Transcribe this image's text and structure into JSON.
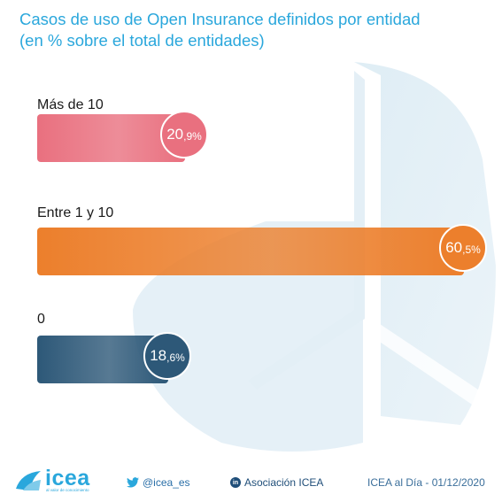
{
  "title_lines": [
    "Casos de uso de Open Insurance definidos por entidad",
    "(en % sobre el total de entidades)"
  ],
  "colors": {
    "accent": "#2aa7dc",
    "bar_mas10": "#e9707f",
    "bar_entre": "#ec7f2c",
    "bar_cero": "#2d5878"
  },
  "chart_data": {
    "type": "bar",
    "orientation": "horizontal",
    "title": "Casos de uso de Open Insurance definidos por entidad",
    "subtitle": "(en % sobre el total de entidades)",
    "categories": [
      "Más de 10",
      "Entre 1 y 10",
      "0"
    ],
    "values": [
      20.9,
      60.5,
      18.6
    ],
    "value_labels": [
      {
        "int": "20",
        "dec": ",9%"
      },
      {
        "int": "60",
        "dec": ",5%"
      },
      {
        "int": "18",
        "dec": ",6%"
      }
    ],
    "unit": "%",
    "xlim": [
      0,
      60.5
    ],
    "grid": false,
    "legend": "none"
  },
  "footer": {
    "logo_text": "icea",
    "logo_tagline": "al valor de conocimiento",
    "twitter_icon": "twitter-bird-icon",
    "twitter_handle": "@icea_es",
    "linkedin_icon": "linkedin-icon",
    "linkedin_glyph": "in",
    "linkedin_name": "Asociación ICEA",
    "date_text": "ICEA al Día - 01/12/2020"
  }
}
